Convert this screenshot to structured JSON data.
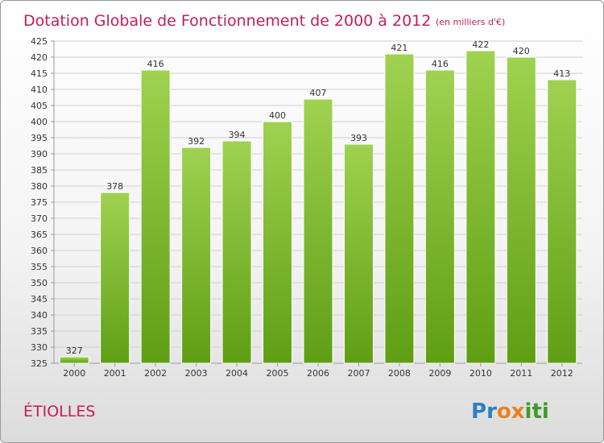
{
  "header": {
    "title": "Dotation Globale de Fonctionnement de 2000 à 2012",
    "subtitle": "(en milliers d'€)"
  },
  "place_name": "ÉTIOLLES",
  "brand": {
    "name": "Proxiti",
    "letters": [
      "P",
      "r",
      "o",
      "x",
      "i",
      "t",
      "i"
    ],
    "letter_colors": [
      "#2a7fc4",
      "#2a7fc4",
      "#e8821e",
      "#e8821e",
      "#3f9a2a",
      "#3f9a2a",
      "#3f9a2a"
    ]
  },
  "colors": {
    "title": "#c21d5c",
    "bar_top": "#9fd250",
    "bar_bottom": "#5f9e14",
    "grid": "#d0d0d0"
  },
  "chart_data": {
    "type": "bar",
    "title": "Dotation Globale de Fonctionnement de 2000 à 2012",
    "subtitle": "(en milliers d'€)",
    "categories": [
      "2000",
      "2001",
      "2002",
      "2003",
      "2004",
      "2005",
      "2006",
      "2007",
      "2008",
      "2009",
      "2010",
      "2011",
      "2012"
    ],
    "values": [
      327,
      378,
      416,
      392,
      394,
      400,
      407,
      393,
      421,
      416,
      422,
      420,
      413
    ],
    "ylim": [
      325,
      425
    ],
    "yticks": [
      325,
      330,
      335,
      340,
      345,
      350,
      355,
      360,
      365,
      370,
      375,
      380,
      385,
      390,
      395,
      400,
      405,
      410,
      415,
      420,
      425
    ],
    "grid": true,
    "legend": "none"
  }
}
